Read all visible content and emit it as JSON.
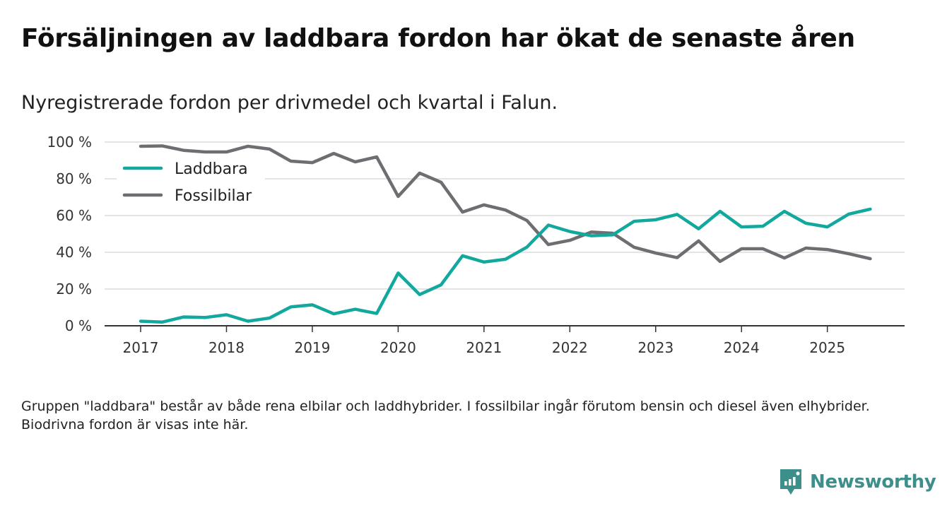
{
  "title": "Försäljningen av laddbara fordon har ökat de senaste åren",
  "subtitle": "Nyregistrerade fordon per drivmedel och kvartal i Falun.",
  "footnote": "Gruppen \"laddbara\" består av både rena elbilar och laddhybrider. I fossilbilar ingår förutom bensin och diesel även elhybrider. Biodrivna fordon är visas inte här.",
  "brand": {
    "name": "Newsworthy",
    "color": "#3d8f8c"
  },
  "chart_data": {
    "type": "line",
    "title": "Försäljningen av laddbara fordon har ökat de senaste åren",
    "subtitle": "Nyregistrerade fordon per drivmedel och kvartal i Falun.",
    "xlabel": "",
    "ylabel": "",
    "x_start_year": 2017,
    "x_step_years": 0.25,
    "xlim": [
      2016.58,
      2025.9
    ],
    "ylim": [
      0,
      100
    ],
    "x_ticks": [
      2017,
      2018,
      2019,
      2020,
      2021,
      2022,
      2023,
      2024,
      2025
    ],
    "x_tick_labels": [
      "2017",
      "2018",
      "2019",
      "2020",
      "2021",
      "2022",
      "2023",
      "2024",
      "2025"
    ],
    "y_ticks": [
      0,
      20,
      40,
      60,
      80,
      100
    ],
    "y_tick_labels": [
      "0 %",
      "20 %",
      "40 %",
      "60 %",
      "80 %",
      "100 %"
    ],
    "grid": true,
    "legend_position": "top-left",
    "series": [
      {
        "name": "Laddbara",
        "color": "#13a89e",
        "values": [
          2.5,
          2,
          4.8,
          4.5,
          6,
          2.5,
          4.2,
          10.3,
          11.4,
          6.5,
          9,
          6.7,
          28.7,
          17,
          22.3,
          38.1,
          34.7,
          36.2,
          42.8,
          54.8,
          51.3,
          49,
          49.5,
          56.9,
          57.7,
          60.6,
          52.8,
          62.3,
          53.8,
          54.2,
          62.3,
          55.8,
          53.8,
          60.8,
          63.5
        ]
      },
      {
        "name": "Fossilbilar",
        "color": "#6d6e72",
        "values": [
          97.7,
          97.9,
          95.5,
          94.6,
          94.6,
          97.7,
          96.2,
          89.6,
          88.8,
          93.8,
          89.2,
          91.9,
          70.4,
          83.1,
          78.1,
          61.9,
          65.8,
          63,
          57.3,
          44.2,
          46.5,
          51,
          50.4,
          42.7,
          39.6,
          37.1,
          46.2,
          35,
          41.9,
          41.9,
          36.9,
          42.3,
          41.5,
          39.2,
          36.5
        ]
      }
    ]
  }
}
